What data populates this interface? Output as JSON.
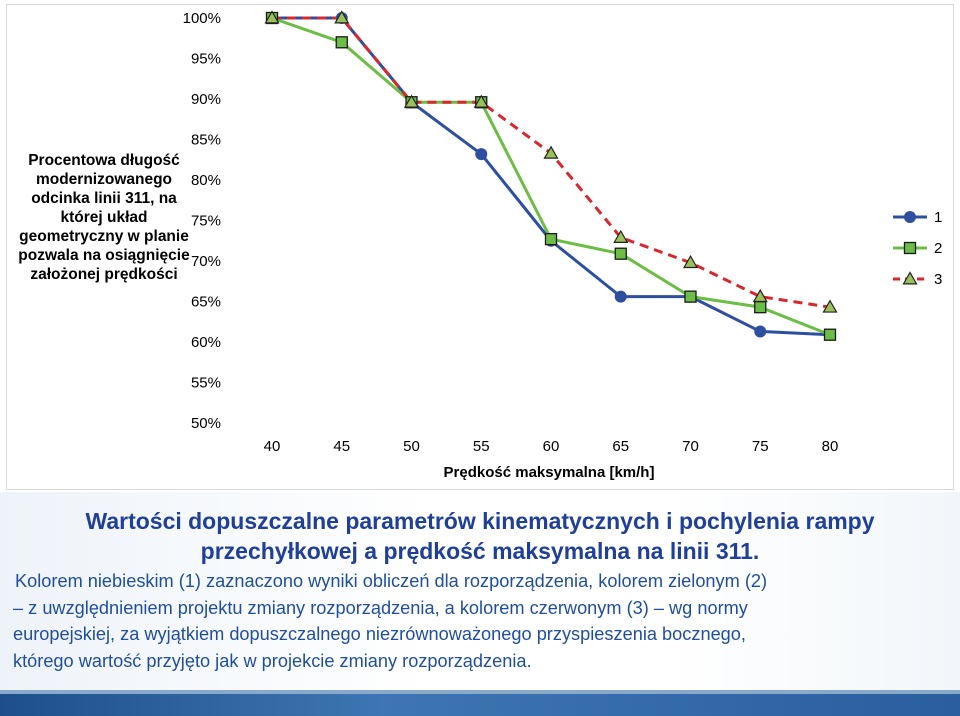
{
  "chart_data": {
    "type": "line",
    "title": "",
    "ylabel_lines": [
      "Procentowa długość",
      "modernizowanego",
      "odcinka linii 311, na",
      "której układ",
      "geometryczny w planie",
      "pozwala na osiągnięcie",
      "założonej prędkości"
    ],
    "xlabel": "Prędkość maksymalna [km/h]",
    "x": [
      40,
      45,
      50,
      55,
      60,
      65,
      70,
      75,
      80
    ],
    "ylim": [
      50,
      100
    ],
    "yticks": [
      "50%",
      "55%",
      "60%",
      "65%",
      "70%",
      "75%",
      "80%",
      "85%",
      "90%",
      "95%",
      "100%"
    ],
    "grid": false,
    "legend_position": "right",
    "series": [
      {
        "name": "1",
        "color": "#2e4fa0",
        "marker": "circle",
        "dash": "solid",
        "values": [
          100,
          100,
          89.6,
          83.2,
          72.5,
          65.6,
          65.6,
          61.3,
          60.9
        ]
      },
      {
        "name": "2",
        "color": "#6cbd45",
        "marker": "square",
        "dash": "solid",
        "values": [
          100,
          97,
          89.6,
          89.6,
          72.7,
          70.9,
          65.6,
          64.3,
          60.9
        ]
      },
      {
        "name": "3",
        "color": "#d7282f",
        "marker": "triangle",
        "dash": "dashed",
        "values": [
          100,
          100,
          89.6,
          89.6,
          83.3,
          72.9,
          69.8,
          65.6,
          64.3
        ]
      }
    ]
  },
  "slide": {
    "title_lines": [
      "Wartości dopuszczalne parametrów kinematycznych i pochylenia rampy",
      "przechyłkowej a prędkość maksymalna na linii 311."
    ],
    "body_lines": [
      "Kolorem niebieskim (1) zaznaczono wyniki obliczeń dla rozporządzenia, kolorem zielonym (2)",
      "– z uwzględnieniem projektu zmiany rozporządzenia, a kolorem czerwonym (3) – wg normy",
      "europejskiej, za wyjątkiem dopuszczalnego niezrównoważonego przyspieszenia bocznego,",
      "którego wartość przyjęto jak w projekcie zmiany rozporządzenia."
    ]
  }
}
